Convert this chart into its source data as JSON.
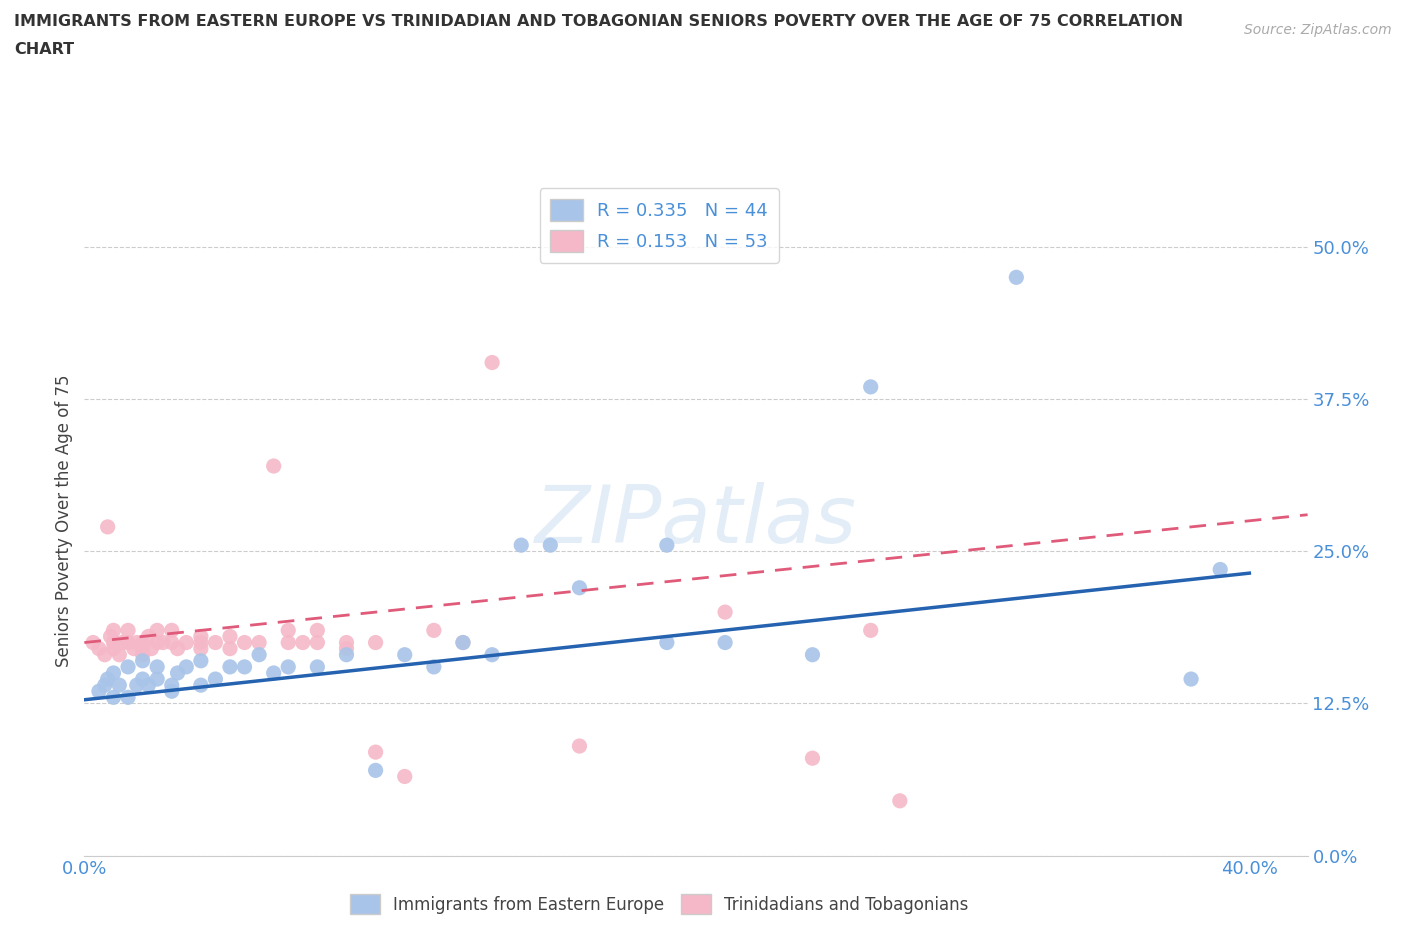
{
  "title_line1": "IMMIGRANTS FROM EASTERN EUROPE VS TRINIDADIAN AND TOBAGONIAN SENIORS POVERTY OVER THE AGE OF 75 CORRELATION",
  "title_line2": "CHART",
  "source_text": "Source: ZipAtlas.com",
  "ylabel": "Seniors Poverty Over the Age of 75",
  "xlim": [
    0.0,
    0.42
  ],
  "ylim": [
    0.0,
    0.55
  ],
  "yticks": [
    0.0,
    0.125,
    0.25,
    0.375,
    0.5
  ],
  "ytick_labels": [
    "0.0%",
    "12.5%",
    "25.0%",
    "37.5%",
    "50.0%"
  ],
  "xticks": [
    0.0,
    0.05,
    0.1,
    0.15,
    0.2,
    0.25,
    0.3,
    0.35,
    0.4
  ],
  "blue_color": "#a8c4e8",
  "pink_color": "#f5b8c8",
  "blue_line_color": "#2563b0",
  "pink_line_color": "#e05a7a",
  "legend_r1": "R = 0.335",
  "legend_n1": "N = 44",
  "legend_r2": "R = 0.153",
  "legend_n2": "N = 53",
  "tick_color": "#4a90d9",
  "blue_x": [
    0.005,
    0.007,
    0.008,
    0.01,
    0.01,
    0.012,
    0.015,
    0.015,
    0.018,
    0.02,
    0.02,
    0.022,
    0.025,
    0.025,
    0.03,
    0.03,
    0.032,
    0.035,
    0.04,
    0.04,
    0.045,
    0.05,
    0.055,
    0.06,
    0.065,
    0.07,
    0.08,
    0.09,
    0.1,
    0.11,
    0.12,
    0.13,
    0.14,
    0.15,
    0.16,
    0.17,
    0.2,
    0.2,
    0.22,
    0.25,
    0.27,
    0.32,
    0.38,
    0.39
  ],
  "blue_y": [
    0.135,
    0.14,
    0.145,
    0.13,
    0.15,
    0.14,
    0.13,
    0.155,
    0.14,
    0.145,
    0.16,
    0.14,
    0.145,
    0.155,
    0.135,
    0.14,
    0.15,
    0.155,
    0.14,
    0.16,
    0.145,
    0.155,
    0.155,
    0.165,
    0.15,
    0.155,
    0.155,
    0.165,
    0.07,
    0.165,
    0.155,
    0.175,
    0.165,
    0.255,
    0.255,
    0.22,
    0.175,
    0.255,
    0.175,
    0.165,
    0.385,
    0.475,
    0.145,
    0.235
  ],
  "pink_x": [
    0.003,
    0.005,
    0.007,
    0.008,
    0.009,
    0.01,
    0.01,
    0.01,
    0.012,
    0.013,
    0.015,
    0.015,
    0.017,
    0.018,
    0.02,
    0.02,
    0.02,
    0.022,
    0.023,
    0.025,
    0.025,
    0.027,
    0.03,
    0.03,
    0.032,
    0.035,
    0.04,
    0.04,
    0.04,
    0.045,
    0.05,
    0.05,
    0.055,
    0.06,
    0.065,
    0.07,
    0.07,
    0.075,
    0.08,
    0.08,
    0.09,
    0.09,
    0.1,
    0.1,
    0.11,
    0.12,
    0.13,
    0.14,
    0.17,
    0.22,
    0.25,
    0.27,
    0.28
  ],
  "pink_y": [
    0.175,
    0.17,
    0.165,
    0.27,
    0.18,
    0.17,
    0.175,
    0.185,
    0.165,
    0.175,
    0.175,
    0.185,
    0.17,
    0.175,
    0.165,
    0.17,
    0.175,
    0.18,
    0.17,
    0.175,
    0.185,
    0.175,
    0.175,
    0.185,
    0.17,
    0.175,
    0.17,
    0.18,
    0.175,
    0.175,
    0.17,
    0.18,
    0.175,
    0.175,
    0.32,
    0.175,
    0.185,
    0.175,
    0.175,
    0.185,
    0.17,
    0.175,
    0.085,
    0.175,
    0.065,
    0.185,
    0.175,
    0.405,
    0.09,
    0.2,
    0.08,
    0.185,
    0.045
  ],
  "blue_trend_x": [
    0.0,
    0.4
  ],
  "blue_trend_y": [
    0.128,
    0.232
  ],
  "pink_trend_x": [
    0.0,
    0.28
  ],
  "pink_trend_y": [
    0.175,
    0.245
  ]
}
